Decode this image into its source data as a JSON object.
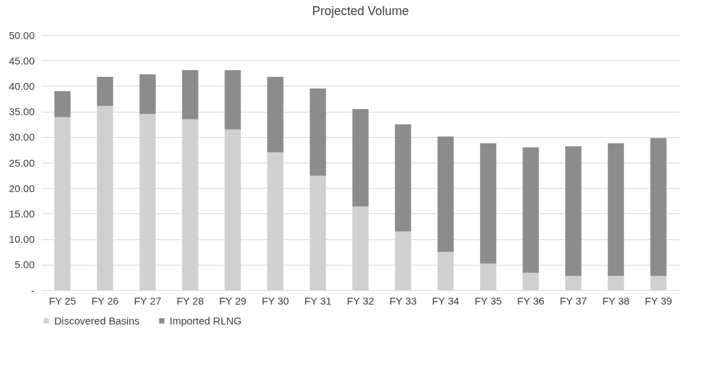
{
  "chart_data": {
    "type": "bar",
    "title": "Projected Volume",
    "stacked": true,
    "grid": "y",
    "legend": "bottom",
    "categories": [
      "FY 25",
      "FY 26",
      "FY 27",
      "FY 28",
      "FY 29",
      "FY 30",
      "FY 31",
      "FY 32",
      "FY 33",
      "FY 34",
      "FY 35",
      "FY 36",
      "FY 37",
      "FY 38",
      "FY 39"
    ],
    "series": [
      {
        "name": "Discovered Basins",
        "color": "#d0d0d0",
        "values": [
          33.9,
          36.1,
          34.5,
          33.5,
          31.5,
          27.0,
          22.4,
          16.4,
          11.5,
          7.5,
          5.2,
          3.4,
          2.8,
          2.8,
          2.8
        ]
      },
      {
        "name": "Imported RLNG",
        "color": "#8c8c8c",
        "values": [
          5.1,
          5.7,
          7.8,
          9.6,
          11.6,
          14.8,
          17.1,
          19.1,
          21.0,
          22.6,
          23.6,
          24.6,
          25.4,
          26.0,
          27.0
        ]
      }
    ],
    "ylim": [
      0,
      50
    ],
    "yticks": [
      {
        "value": 0,
        "label": "-"
      },
      {
        "value": 5,
        "label": "5.00"
      },
      {
        "value": 10,
        "label": "10.00"
      },
      {
        "value": 15,
        "label": "15.00"
      },
      {
        "value": 20,
        "label": "20.00"
      },
      {
        "value": 25,
        "label": "25.00"
      },
      {
        "value": 30,
        "label": "30.00"
      },
      {
        "value": 35,
        "label": "35.00"
      },
      {
        "value": 40,
        "label": "40.00"
      },
      {
        "value": 45,
        "label": "45.00"
      },
      {
        "value": 50,
        "label": "50.00"
      }
    ]
  }
}
